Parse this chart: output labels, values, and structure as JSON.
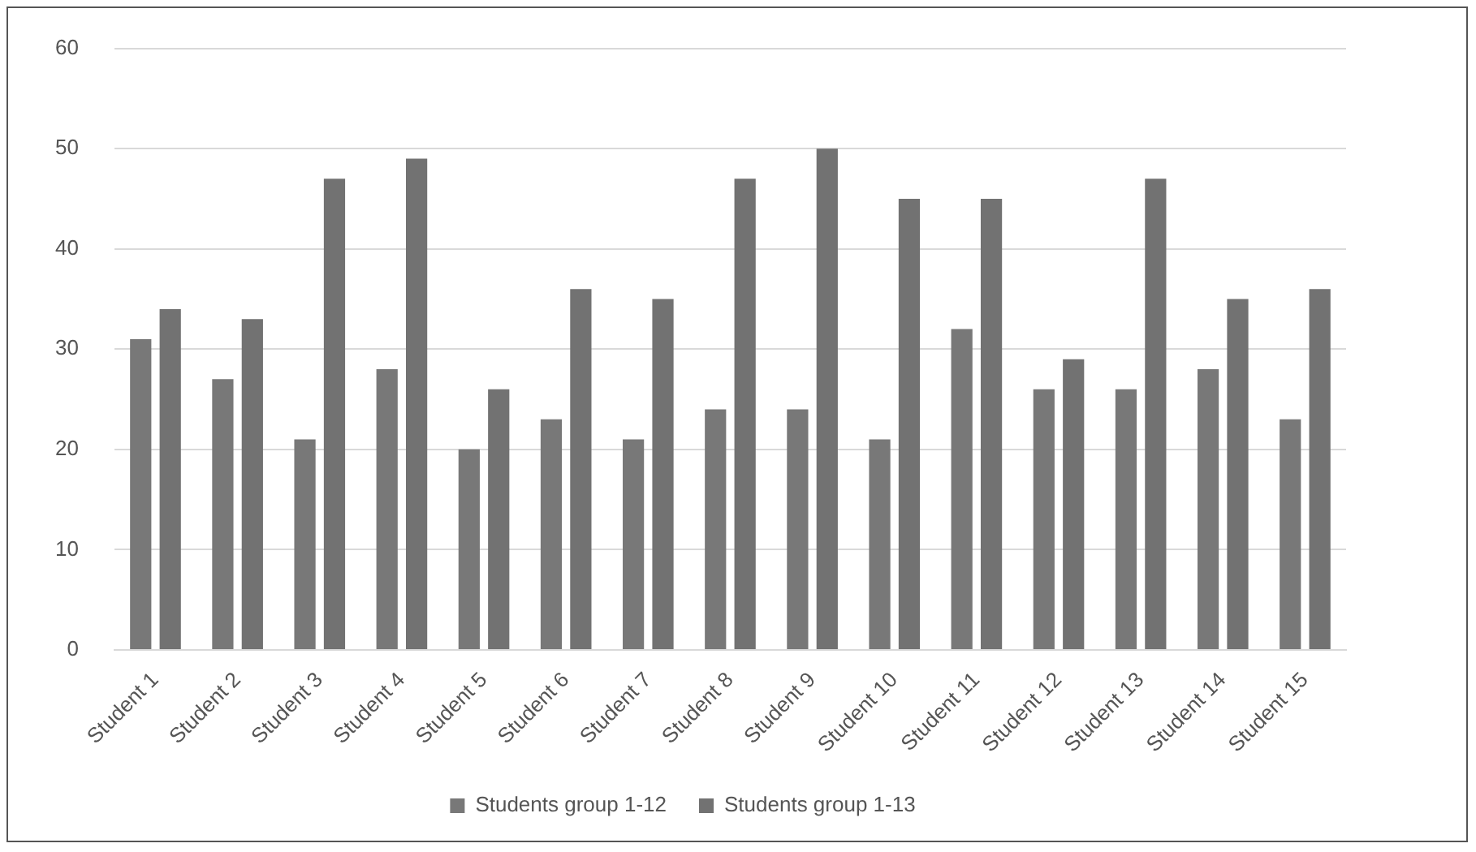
{
  "chart_data": {
    "type": "bar",
    "categories": [
      "Student 1",
      "Student 2",
      "Student 3",
      "Student 4",
      "Student 5",
      "Student 6",
      "Student 7",
      "Student 8",
      "Student 9",
      "Student 10",
      "Student 11",
      "Student 12",
      "Student 13",
      "Student 14",
      "Student 15"
    ],
    "series": [
      {
        "name": "Students group 1-12",
        "color": "#787878",
        "values": [
          31,
          27,
          21,
          28,
          20,
          23,
          21,
          24,
          24,
          21,
          32,
          26,
          26,
          28,
          23
        ]
      },
      {
        "name": "Students group 1-13",
        "color": "#727272",
        "values": [
          34,
          33,
          47,
          49,
          26,
          36,
          35,
          47,
          50,
          45,
          45,
          29,
          47,
          35,
          36
        ]
      }
    ],
    "ylim": [
      0,
      60
    ],
    "yticks": [
      0,
      10,
      20,
      30,
      40,
      50,
      60
    ],
    "grid": "y",
    "legend": "bottom"
  }
}
